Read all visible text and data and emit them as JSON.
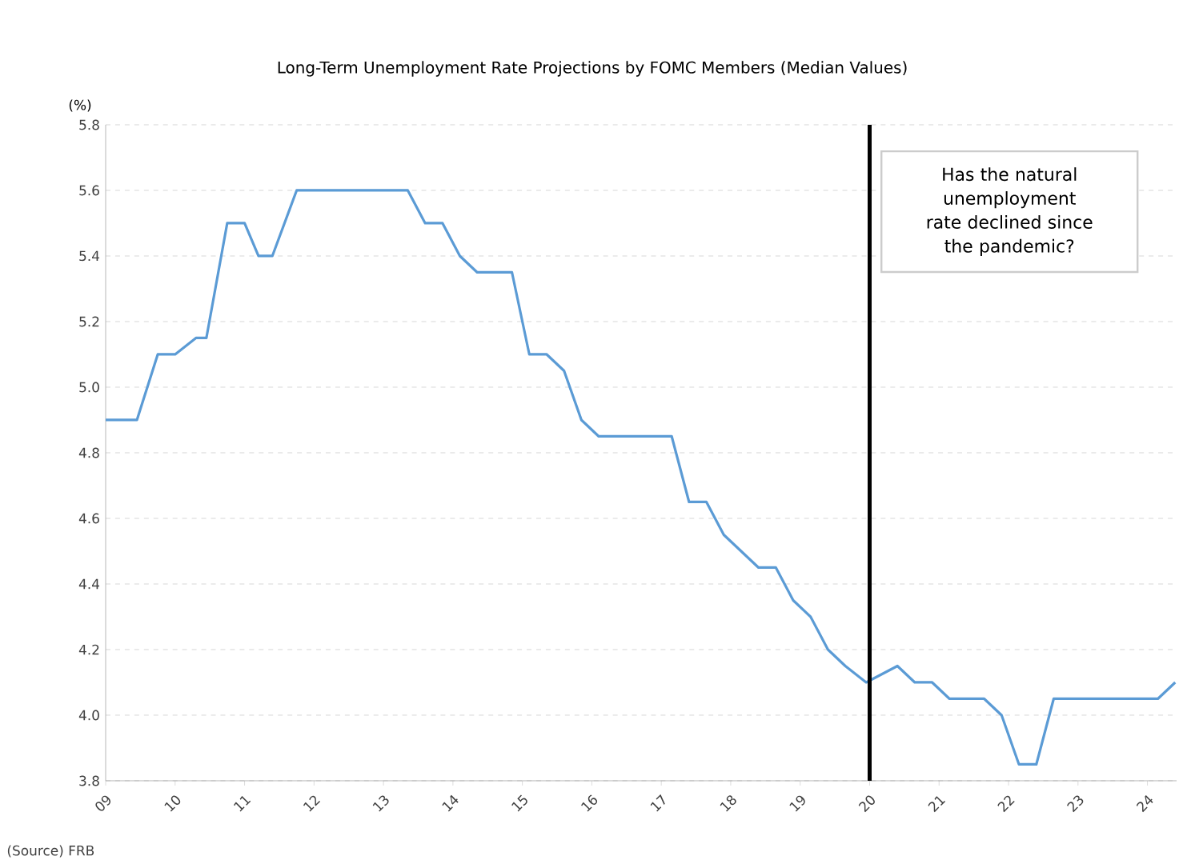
{
  "chart_data": {
    "type": "line",
    "title": "Long-Term Unemployment Rate Projections by FOMC Members (Median Values)",
    "ylabel": "(%)",
    "annotations": [
      "Has the natural unemployment rate declined since the pandemic?",
      "(Source) FRB"
    ],
    "series": [
      {
        "color": "#5b9bd5",
        "x": [
          2009.0,
          2009.45,
          2009.75,
          2010.0,
          2010.3,
          2010.45,
          2010.75,
          2011.0,
          2011.2,
          2011.4,
          2011.75,
          2013.35,
          2013.6,
          2013.85,
          2014.1,
          2014.35,
          2014.85,
          2015.1,
          2015.35,
          2015.6,
          2015.85,
          2016.1,
          2017.15,
          2017.4,
          2017.65,
          2017.9,
          2018.15,
          2018.4,
          2018.65,
          2018.9,
          2019.15,
          2019.4,
          2019.65,
          2019.95,
          2020.4,
          2020.65,
          2020.9,
          2021.15,
          2021.65,
          2021.9,
          2022.15,
          2022.4,
          2022.65,
          2024.15,
          2024.4
        ],
        "values": [
          4.9,
          4.9,
          5.1,
          5.1,
          5.15,
          5.15,
          5.5,
          5.5,
          5.4,
          5.4,
          5.6,
          5.6,
          5.5,
          5.5,
          5.4,
          5.35,
          5.35,
          5.1,
          5.1,
          5.05,
          4.9,
          4.85,
          4.85,
          4.65,
          4.65,
          4.55,
          4.5,
          4.45,
          4.45,
          4.35,
          4.3,
          4.2,
          4.15,
          4.1,
          4.15,
          4.1,
          4.1,
          4.05,
          4.05,
          4.0,
          3.85,
          3.85,
          4.05,
          4.05,
          4.1
        ]
      }
    ],
    "xlim": [
      2009,
      2024.42
    ],
    "xticks": [
      {
        "value": 2009,
        "label": "09"
      },
      {
        "value": 2010,
        "label": "10"
      },
      {
        "value": 2011,
        "label": "11"
      },
      {
        "value": 2012,
        "label": "12"
      },
      {
        "value": 2013,
        "label": "13"
      },
      {
        "value": 2014,
        "label": "14"
      },
      {
        "value": 2015,
        "label": "15"
      },
      {
        "value": 2016,
        "label": "16"
      },
      {
        "value": 2017,
        "label": "17"
      },
      {
        "value": 2018,
        "label": "18"
      },
      {
        "value": 2019,
        "label": "19"
      },
      {
        "value": 2020,
        "label": "20"
      },
      {
        "value": 2021,
        "label": "21"
      },
      {
        "value": 2022,
        "label": "22"
      },
      {
        "value": 2023,
        "label": "23"
      },
      {
        "value": 2024,
        "label": "24"
      }
    ],
    "ylim": [
      3.8,
      5.8
    ],
    "yticks": [
      {
        "value": 3.8,
        "label": "3.8"
      },
      {
        "value": 4.0,
        "label": "4.0"
      },
      {
        "value": 4.2,
        "label": "4.2"
      },
      {
        "value": 4.4,
        "label": "4.4"
      },
      {
        "value": 4.6,
        "label": "4.6"
      },
      {
        "value": 4.8,
        "label": "4.8"
      },
      {
        "value": 5.0,
        "label": "5.0"
      },
      {
        "value": 5.2,
        "label": "5.2"
      },
      {
        "value": 5.4,
        "label": "5.4"
      },
      {
        "value": 5.6,
        "label": "5.6"
      },
      {
        "value": 5.8,
        "label": "5.8"
      }
    ],
    "grid": "y",
    "ref_lines": [
      {
        "axis": "x",
        "value": 2020,
        "color": "#000000"
      }
    ]
  }
}
